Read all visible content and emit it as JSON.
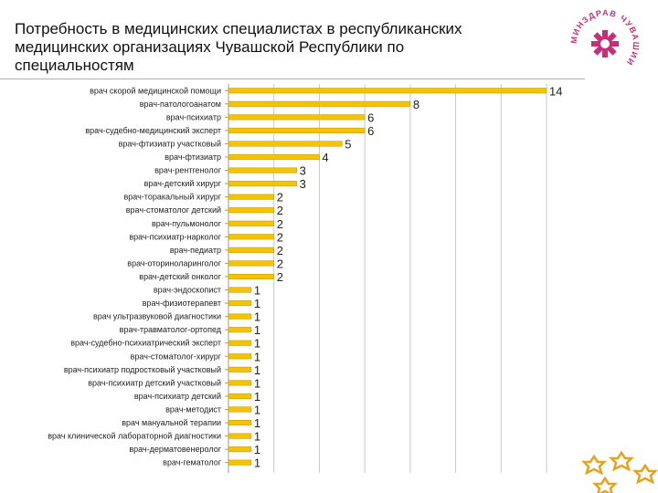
{
  "title": "Потребность в медицинских специалистах в республиканских медицинских организациях Чувашской Республики по специальностям",
  "logo": {
    "ring_text": "МИНЗДРАВ ЧУВАШИИ",
    "accent": "#c62f78"
  },
  "colors": {
    "bar": "#f5c400",
    "bar_edge": "#c99d00",
    "grid": "#c9c9c9",
    "axis": "#999999",
    "corner": "#e6a21a"
  },
  "chart_data": {
    "type": "bar",
    "orientation": "horizontal",
    "title": "",
    "xlabel": "",
    "ylabel": "",
    "xlim": [
      0,
      14
    ],
    "grid": true,
    "legend": "none",
    "categories": [
      "врач скорой медицинской помощи",
      "врач-патологоанатом",
      "врач-психиатр",
      "врач-судебно-медицинский эксперт",
      "врач-фтизиатр участковый",
      "врач-фтизиатр",
      "врач-рентгенолог",
      "врач-детский хирург",
      "врач-торакальный хирург",
      "врач-стоматолог детский",
      "врач-пульмонолог",
      "врач-психиатр-нарколог",
      "врач-педиатр",
      "врач-оториноларинголог",
      "врач-детский онколог",
      "врач-эндоскопист",
      "врач-физиотерапевт",
      "врач ультразвуковой диагностики",
      "врач-травматолог-ортопед",
      "врач-судебно-психиатрический эксперт",
      "врач-стоматолог-хирург",
      "врач-психиатр подростковый участковый",
      "врач-психиатр детский участковый",
      "врач-психиатр детский",
      "врач-методист",
      "врач мануальной терапии",
      "врач клинической лабораторной диагностики",
      "врач-дерматовенеролог",
      "врач-гематолог"
    ],
    "values": [
      14,
      8,
      6,
      6,
      5,
      4,
      3,
      3,
      2,
      2,
      2,
      2,
      2,
      2,
      2,
      1,
      1,
      1,
      1,
      1,
      1,
      1,
      1,
      1,
      1,
      1,
      1,
      1,
      1
    ]
  }
}
